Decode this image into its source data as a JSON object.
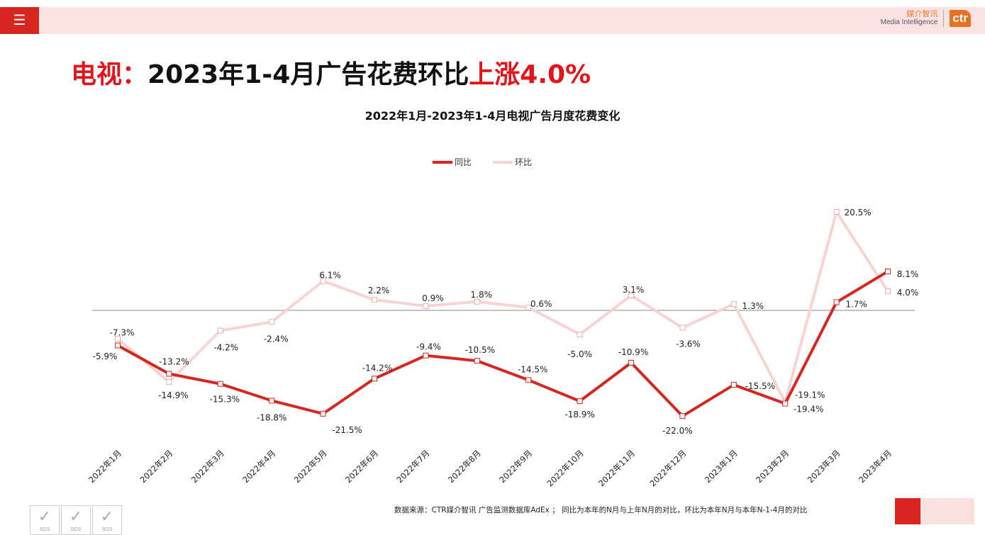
{
  "header": {
    "menu_icon": "hamburger-icon",
    "logo_cn": "媒介智讯",
    "logo_en": "Media Intelligence",
    "logo_mark": "ctr"
  },
  "title": {
    "prefix": "电视：",
    "main": "2023年1-4月广告花费环比",
    "highlight": "上涨4.0%"
  },
  "colors": {
    "accent": "#d7261f",
    "yoy": "#d7261f",
    "mom": "#fbd2d2",
    "title_red": "#e5141a"
  },
  "chart_data": {
    "type": "line",
    "title": "2022年1月-2023年1-4月电视广告月度花费变化",
    "categories": [
      "2022年1月",
      "2022年2月",
      "2022年3月",
      "2022年4月",
      "2022年5月",
      "2022年6月",
      "2022年7月",
      "2022年8月",
      "2022年9月",
      "2022年10月",
      "2022年11月",
      "2022年12月",
      "2023年1月",
      "2023年2月",
      "2023年3月",
      "2023年4月"
    ],
    "series": [
      {
        "name": "同比",
        "values": [
          -7.3,
          -13.2,
          -15.3,
          -18.8,
          -21.5,
          -14.2,
          -9.4,
          -10.5,
          -14.5,
          -18.9,
          -10.9,
          -22.0,
          -15.5,
          -19.4,
          1.7,
          8.1
        ],
        "labels": [
          "-7.3%",
          "-13.2%",
          "-15.3%",
          "-18.8%",
          "-21.5%",
          "-14.2%",
          "-9.4%",
          "-10.5%",
          "-14.5%",
          "-18.9%",
          "-10.9%",
          "-22.0%",
          "-15.5%",
          "-19.4%",
          "1.7%",
          "8.1%"
        ]
      },
      {
        "name": "环比",
        "values": [
          -5.9,
          -14.9,
          -4.2,
          -2.4,
          6.1,
          2.2,
          0.9,
          1.8,
          0.6,
          -5.0,
          3.1,
          -3.6,
          1.3,
          -19.1,
          20.5,
          4.0
        ],
        "labels": [
          "-5.9%",
          "-14.9%",
          "-4.2%",
          "-2.4%",
          "6.1%",
          "2.2%",
          "0.9%",
          "1.8%",
          "0.6%",
          "-5.0%",
          "3.1%",
          "-3.6%",
          "1.3%",
          "-19.1%",
          "20.5%",
          "4.0%"
        ]
      }
    ],
    "unit": "%",
    "legend": "top",
    "grid": false,
    "zero_line": true
  },
  "footer": {
    "source": "数据来源：CTR媒介智讯 广告监测数据库AdEx ； 同比为本年的N月与上年N月的对比，环比为本年N月与本年N-1-4月的对比",
    "cert_logos": "SGS"
  }
}
